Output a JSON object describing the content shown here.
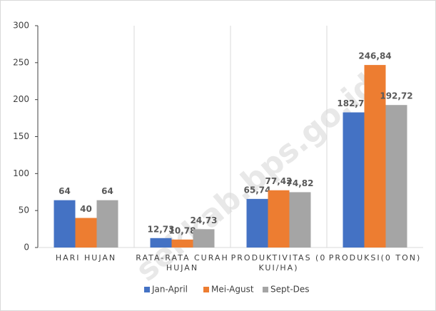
{
  "chart_data": {
    "type": "bar",
    "categories": [
      "HARI HUJAN",
      "RATA-RATA CURAH HUJAN",
      "PRODUKTIVITAS (0 KUI/HA)",
      "PRODUKSI(0 TON)"
    ],
    "series": [
      {
        "name": "Jan-April",
        "color": "#4472c4",
        "values": [
          64,
          12.73,
          65.74,
          182.76
        ],
        "value_labels": [
          "64",
          "12,73",
          "65,74",
          "182,76"
        ]
      },
      {
        "name": "Mei-Agust",
        "color": "#ed7d31",
        "values": [
          40,
          10.78,
          77.42,
          246.84
        ],
        "value_labels": [
          "40",
          "10,78",
          "77,42",
          "246,84"
        ]
      },
      {
        "name": "Sept-Des",
        "color": "#a5a5a5",
        "values": [
          64,
          24.73,
          74.82,
          192.72
        ],
        "value_labels": [
          "64",
          "24,73",
          "74,82",
          "192,72"
        ]
      }
    ],
    "ylim": [
      0,
      300
    ],
    "yticks": [
      0,
      50,
      100,
      150,
      200,
      250,
      300
    ],
    "legend": "bottom",
    "watermark": "sekkab.bps.go.id"
  }
}
